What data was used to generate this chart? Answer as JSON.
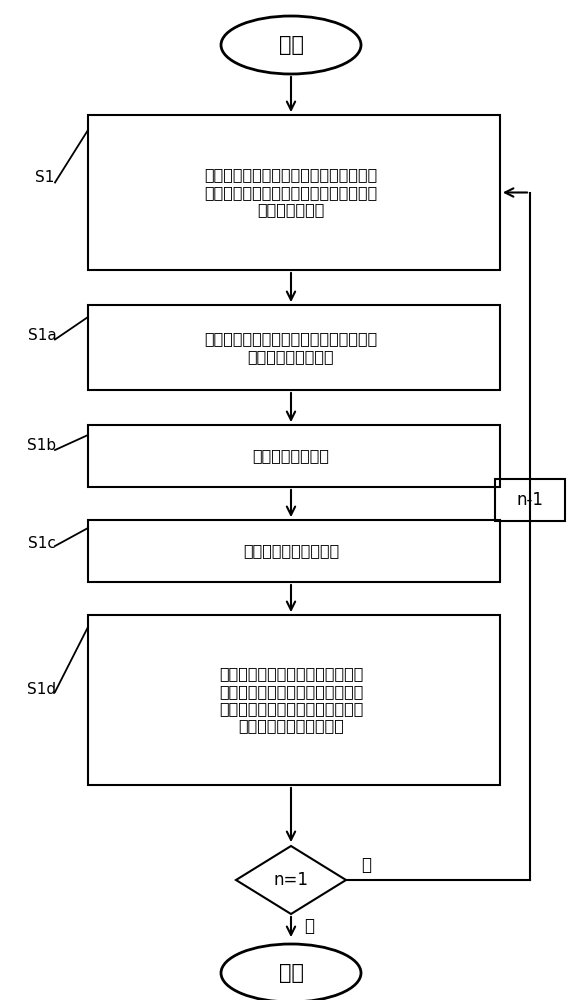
{
  "bg_color": "#ffffff",
  "node_start": {
    "text": "开始"
  },
  "node_S1": {
    "text": "控制滑套开关工具管串至该产层对应的开\n关滑套下方，上提所述滑套开关工具管串\n打开该开关滑套",
    "label": "S1"
  },
  "node_S1a": {
    "text": "下入滑套开关工具管串至该产层，打开该\n产层对应的开关滑套",
    "label": "S1a"
  },
  "node_S1b": {
    "text": "取出开关工具管串",
    "label": "S1b"
  },
  "node_S1c": {
    "text": "在该产层进行压裂作业",
    "label": "S1c"
  },
  "node_S1d": {
    "text": "压裂作业完成后，下入所述滑套开\n关工具管串至该产层对应的开关滑\n套上方，下放滑套开关工具管串关\n闭该产层对应的开关滑套",
    "label": "S1d"
  },
  "node_diamond": {
    "text": "n=1"
  },
  "node_end": {
    "text": "结束"
  },
  "node_nm1": {
    "text": "n-1"
  },
  "yes_label": "是",
  "no_label": "否"
}
